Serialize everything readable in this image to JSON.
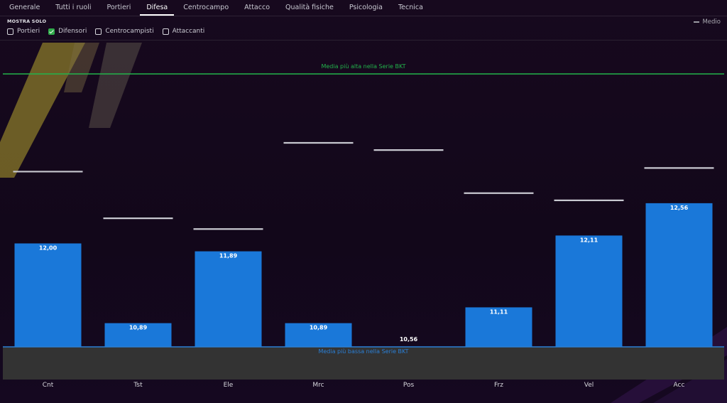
{
  "tabs": [
    {
      "label": "Generale"
    },
    {
      "label": "Tutti i ruoli"
    },
    {
      "label": "Portieri"
    },
    {
      "label": "Difesa",
      "active": true
    },
    {
      "label": "Centrocampo"
    },
    {
      "label": "Attacco"
    },
    {
      "label": "Qualità fisiche"
    },
    {
      "label": "Psicologia"
    },
    {
      "label": "Tecnica"
    }
  ],
  "filter": {
    "label": "MOSTRA SOLO",
    "options": [
      {
        "label": "Portieri",
        "checked": false
      },
      {
        "label": "Difensori",
        "checked": true
      },
      {
        "label": "Centrocampisti",
        "checked": false
      },
      {
        "label": "Attaccanti",
        "checked": false
      }
    ]
  },
  "legend": {
    "label": "Medio"
  },
  "colors": {
    "bar": "#1a78d9",
    "high_line": "#22b34b",
    "low_line": "#2a7fd6",
    "average_marker": "#c8c8d0",
    "low_band": "#333333"
  },
  "chart_data": {
    "type": "bar",
    "categories": [
      "Cnt",
      "Tst",
      "Ele",
      "Mrc",
      "Pos",
      "Frz",
      "Vel",
      "Acc"
    ],
    "values": [
      12.0,
      10.89,
      11.89,
      10.89,
      10.56,
      11.11,
      12.11,
      12.56
    ],
    "value_labels": [
      "12,00",
      "10,89",
      "11,89",
      "10,89",
      "10,56",
      "11,11",
      "12,11",
      "12,56"
    ],
    "average": [
      13.0,
      12.35,
      12.2,
      13.4,
      13.3,
      12.7,
      12.6,
      13.05
    ],
    "ylim": [
      10.56,
      14.36
    ],
    "reference_lines": [
      {
        "label": "Media più alta nella Serie BKT",
        "value": 14.36
      },
      {
        "label": "Media più bassa nella Serie BKT",
        "value": 10.56
      }
    ],
    "legend": [
      "Medio"
    ]
  }
}
